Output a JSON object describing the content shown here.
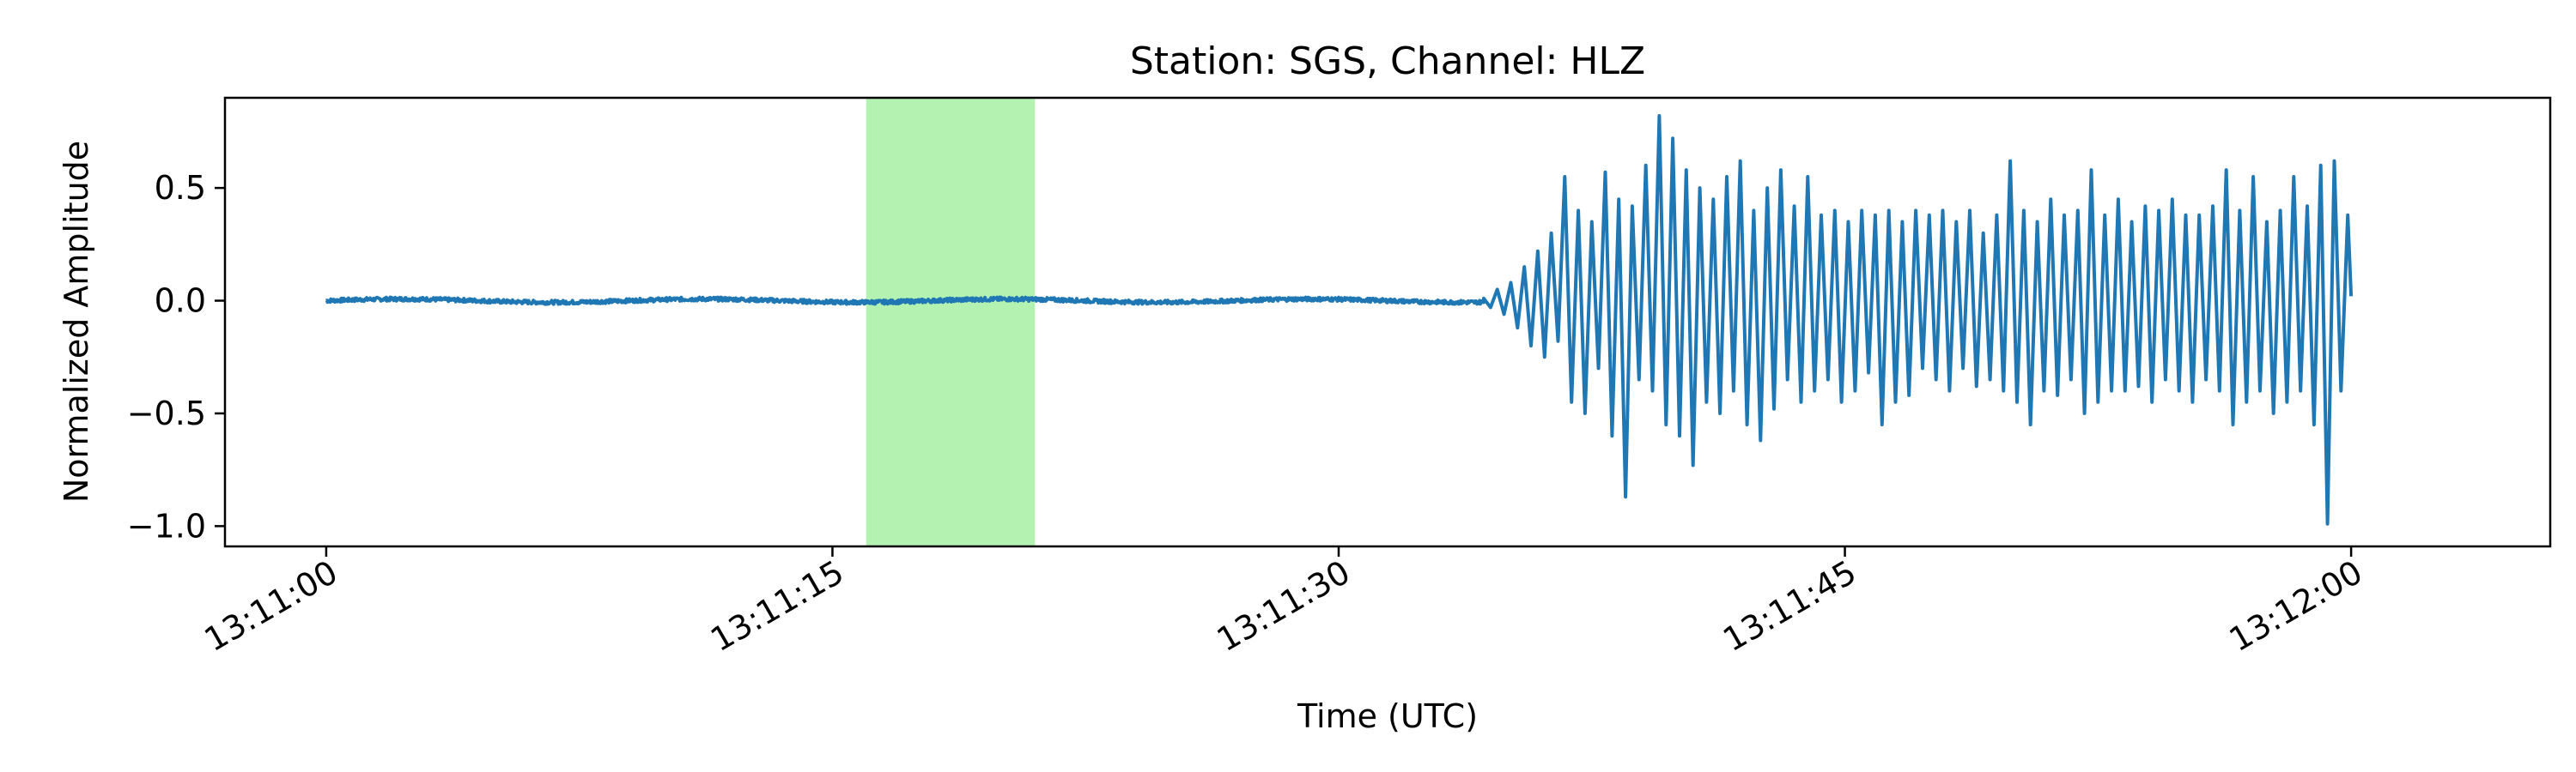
{
  "chart_data": {
    "type": "line",
    "title": "Station: SGS, Channel: HLZ",
    "xlabel": "Time (UTC)",
    "ylabel": "Normalized Amplitude",
    "x_unit": "seconds after 13:11:00 UTC",
    "xlim": [
      -3,
      65.9
    ],
    "ylim": [
      -1.09,
      0.9
    ],
    "x_ticks": [
      0,
      15,
      30,
      45,
      60
    ],
    "x_tick_labels": [
      "13:11:00",
      "13:11:15",
      "13:11:30",
      "13:11:45",
      "13:12:00"
    ],
    "y_ticks": [
      0.5,
      0.0,
      -0.5,
      -1.0
    ],
    "y_tick_labels": [
      "0.5",
      "0.0",
      "−0.5",
      "−1.0"
    ],
    "grid": false,
    "legend": "none",
    "highlight": {
      "x_start": 16.0,
      "x_end": 21.0,
      "color": "#b3f2b1"
    },
    "series": [
      {
        "color": "#1f77b4",
        "noise_segment": {
          "x_start": 0,
          "x_end": 34.3,
          "amplitude": 0.012
        },
        "points": [
          [
            34.3,
            0.01
          ],
          [
            34.5,
            -0.03
          ],
          [
            34.7,
            0.05
          ],
          [
            34.9,
            -0.06
          ],
          [
            35.1,
            0.08
          ],
          [
            35.3,
            -0.12
          ],
          [
            35.5,
            0.15
          ],
          [
            35.7,
            -0.2
          ],
          [
            35.9,
            0.22
          ],
          [
            36.1,
            -0.25
          ],
          [
            36.3,
            0.3
          ],
          [
            36.5,
            -0.18
          ],
          [
            36.7,
            0.55
          ],
          [
            36.9,
            -0.45
          ],
          [
            37.1,
            0.4
          ],
          [
            37.3,
            -0.5
          ],
          [
            37.5,
            0.35
          ],
          [
            37.7,
            -0.3
          ],
          [
            37.9,
            0.57
          ],
          [
            38.1,
            -0.6
          ],
          [
            38.3,
            0.45
          ],
          [
            38.5,
            -0.87
          ],
          [
            38.7,
            0.42
          ],
          [
            38.9,
            -0.35
          ],
          [
            39.1,
            0.6
          ],
          [
            39.3,
            -0.4
          ],
          [
            39.5,
            0.82
          ],
          [
            39.7,
            -0.55
          ],
          [
            39.9,
            0.72
          ],
          [
            40.1,
            -0.6
          ],
          [
            40.3,
            0.58
          ],
          [
            40.5,
            -0.73
          ],
          [
            40.7,
            0.5
          ],
          [
            40.9,
            -0.45
          ],
          [
            41.1,
            0.45
          ],
          [
            41.3,
            -0.5
          ],
          [
            41.5,
            0.55
          ],
          [
            41.7,
            -0.4
          ],
          [
            41.9,
            0.62
          ],
          [
            42.1,
            -0.55
          ],
          [
            42.3,
            0.4
          ],
          [
            42.5,
            -0.62
          ],
          [
            42.7,
            0.5
          ],
          [
            42.9,
            -0.48
          ],
          [
            43.1,
            0.58
          ],
          [
            43.3,
            -0.35
          ],
          [
            43.5,
            0.42
          ],
          [
            43.7,
            -0.45
          ],
          [
            43.9,
            0.55
          ],
          [
            44.1,
            -0.4
          ],
          [
            44.3,
            0.38
          ],
          [
            44.5,
            -0.35
          ],
          [
            44.7,
            0.4
          ],
          [
            44.9,
            -0.45
          ],
          [
            45.1,
            0.35
          ],
          [
            45.3,
            -0.4
          ],
          [
            45.5,
            0.4
          ],
          [
            45.7,
            -0.32
          ],
          [
            45.9,
            0.38
          ],
          [
            46.1,
            -0.55
          ],
          [
            46.3,
            0.4
          ],
          [
            46.5,
            -0.45
          ],
          [
            46.7,
            0.35
          ],
          [
            46.9,
            -0.42
          ],
          [
            47.1,
            0.4
          ],
          [
            47.3,
            -0.3
          ],
          [
            47.5,
            0.38
          ],
          [
            47.7,
            -0.35
          ],
          [
            47.9,
            0.4
          ],
          [
            48.1,
            -0.4
          ],
          [
            48.3,
            0.35
          ],
          [
            48.5,
            -0.3
          ],
          [
            48.7,
            0.4
          ],
          [
            48.9,
            -0.38
          ],
          [
            49.1,
            0.3
          ],
          [
            49.3,
            -0.35
          ],
          [
            49.5,
            0.38
          ],
          [
            49.7,
            -0.4
          ],
          [
            49.9,
            0.62
          ],
          [
            50.1,
            -0.45
          ],
          [
            50.3,
            0.4
          ],
          [
            50.5,
            -0.55
          ],
          [
            50.7,
            0.35
          ],
          [
            50.9,
            -0.4
          ],
          [
            51.1,
            0.45
          ],
          [
            51.3,
            -0.42
          ],
          [
            51.5,
            0.38
          ],
          [
            51.7,
            -0.35
          ],
          [
            51.9,
            0.4
          ],
          [
            52.1,
            -0.5
          ],
          [
            52.3,
            0.58
          ],
          [
            52.5,
            -0.45
          ],
          [
            52.7,
            0.38
          ],
          [
            52.9,
            -0.4
          ],
          [
            53.1,
            0.45
          ],
          [
            53.3,
            -0.4
          ],
          [
            53.5,
            0.35
          ],
          [
            53.7,
            -0.38
          ],
          [
            53.9,
            0.42
          ],
          [
            54.1,
            -0.45
          ],
          [
            54.3,
            0.4
          ],
          [
            54.5,
            -0.35
          ],
          [
            54.7,
            0.45
          ],
          [
            54.9,
            -0.4
          ],
          [
            55.1,
            0.38
          ],
          [
            55.3,
            -0.45
          ],
          [
            55.5,
            0.38
          ],
          [
            55.7,
            -0.35
          ],
          [
            55.9,
            0.42
          ],
          [
            56.1,
            -0.4
          ],
          [
            56.3,
            0.58
          ],
          [
            56.5,
            -0.55
          ],
          [
            56.7,
            0.4
          ],
          [
            56.9,
            -0.45
          ],
          [
            57.1,
            0.55
          ],
          [
            57.3,
            -0.4
          ],
          [
            57.5,
            0.35
          ],
          [
            57.7,
            -0.5
          ],
          [
            57.9,
            0.4
          ],
          [
            58.1,
            -0.45
          ],
          [
            58.3,
            0.55
          ],
          [
            58.5,
            -0.4
          ],
          [
            58.7,
            0.42
          ],
          [
            58.9,
            -0.55
          ],
          [
            59.1,
            0.6
          ],
          [
            59.3,
            -0.99
          ],
          [
            59.5,
            0.62
          ],
          [
            59.7,
            -0.4
          ],
          [
            59.9,
            0.38
          ],
          [
            60.0,
            0.02
          ]
        ]
      }
    ]
  }
}
